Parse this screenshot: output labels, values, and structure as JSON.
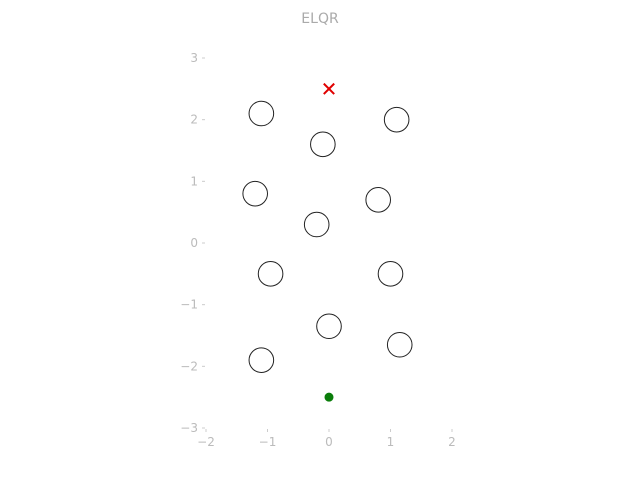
{
  "chart_data": {
    "type": "scatter",
    "title": "ELQR",
    "xlabel": "",
    "ylabel": "",
    "xlim": [
      -2,
      2
    ],
    "ylim": [
      -3,
      3
    ],
    "x_ticks": [
      -2,
      -1,
      0,
      1,
      2
    ],
    "y_ticks": [
      -3,
      -2,
      -1,
      0,
      1,
      2,
      3
    ],
    "x_tick_labels": [
      "−2",
      "−1",
      "0",
      "1",
      "2"
    ],
    "y_tick_labels": [
      "−3",
      "−2",
      "−1",
      "0",
      "1",
      "2",
      "3"
    ],
    "grid": false,
    "obstacles": {
      "radius": 0.2,
      "points": [
        {
          "x": -1.1,
          "y": 2.1
        },
        {
          "x": 1.1,
          "y": 2.0
        },
        {
          "x": -0.1,
          "y": 1.6
        },
        {
          "x": -1.2,
          "y": 0.8
        },
        {
          "x": 0.8,
          "y": 0.7
        },
        {
          "x": -0.2,
          "y": 0.3
        },
        {
          "x": -0.95,
          "y": -0.5
        },
        {
          "x": 1.0,
          "y": -0.5
        },
        {
          "x": 0.0,
          "y": -1.35
        },
        {
          "x": -1.1,
          "y": -1.9
        },
        {
          "x": 1.15,
          "y": -1.65
        }
      ]
    },
    "goal": {
      "x": 0.0,
      "y": 2.5,
      "marker": "x",
      "color": "#e00000"
    },
    "start": {
      "x": 0.0,
      "y": -2.5,
      "marker": "o",
      "color": "#0a7d0a"
    }
  }
}
